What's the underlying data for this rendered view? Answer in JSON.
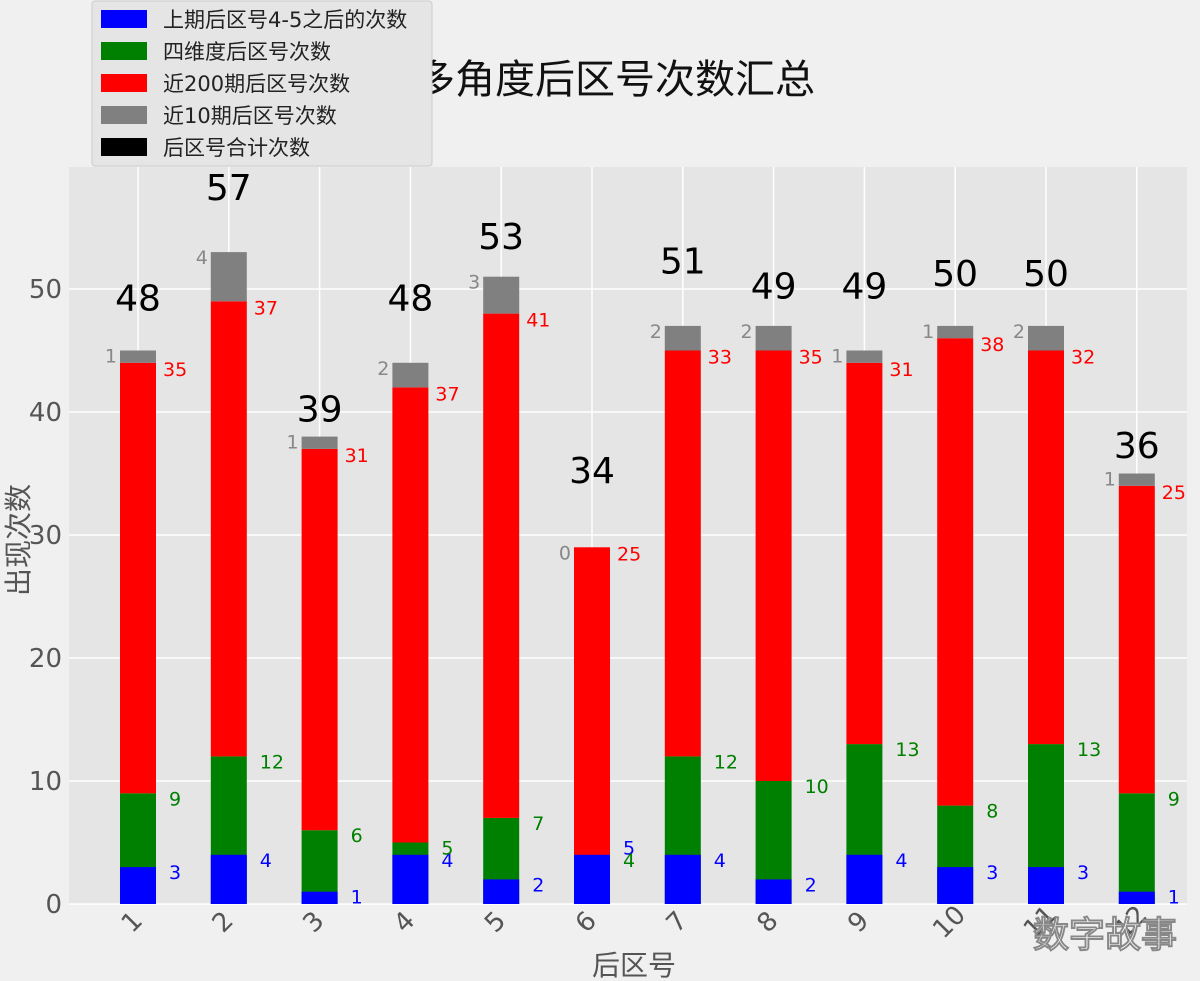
{
  "chart_data": {
    "type": "bar",
    "title": "多角度后区号次数汇总",
    "xlabel": "后区号",
    "ylabel": "出现次数",
    "categories": [
      "1",
      "2",
      "3",
      "4",
      "5",
      "6",
      "7",
      "8",
      "9",
      "10",
      "11",
      "12"
    ],
    "series": [
      {
        "name": "上期后区号4-5之后的次数",
        "color": "#0000ff",
        "values": [
          3,
          4,
          1,
          4,
          2,
          5,
          4,
          2,
          4,
          3,
          3,
          1
        ]
      },
      {
        "name": "四维度后区号次数",
        "color": "#008000",
        "values": [
          9,
          12,
          6,
          5,
          7,
          4,
          12,
          10,
          13,
          8,
          13,
          9
        ]
      },
      {
        "name": "近200期后区号次数",
        "color": "#ff0000",
        "values": [
          35,
          37,
          31,
          37,
          41,
          25,
          33,
          35,
          31,
          38,
          32,
          25
        ]
      },
      {
        "name": "近10期后区号次数",
        "color": "#808080",
        "values": [
          1,
          4,
          1,
          2,
          3,
          0,
          2,
          2,
          1,
          1,
          2,
          1
        ]
      },
      {
        "name": "后区号合计次数",
        "color": "#000000",
        "values": [
          48,
          57,
          39,
          48,
          53,
          34,
          51,
          49,
          49,
          50,
          50,
          36
        ]
      }
    ],
    "yticks": [
      0,
      10,
      20,
      30,
      40,
      50
    ],
    "ylim": [
      0,
      60
    ],
    "grid": true,
    "legend_position": "top-left"
  },
  "watermark": "数字故事"
}
